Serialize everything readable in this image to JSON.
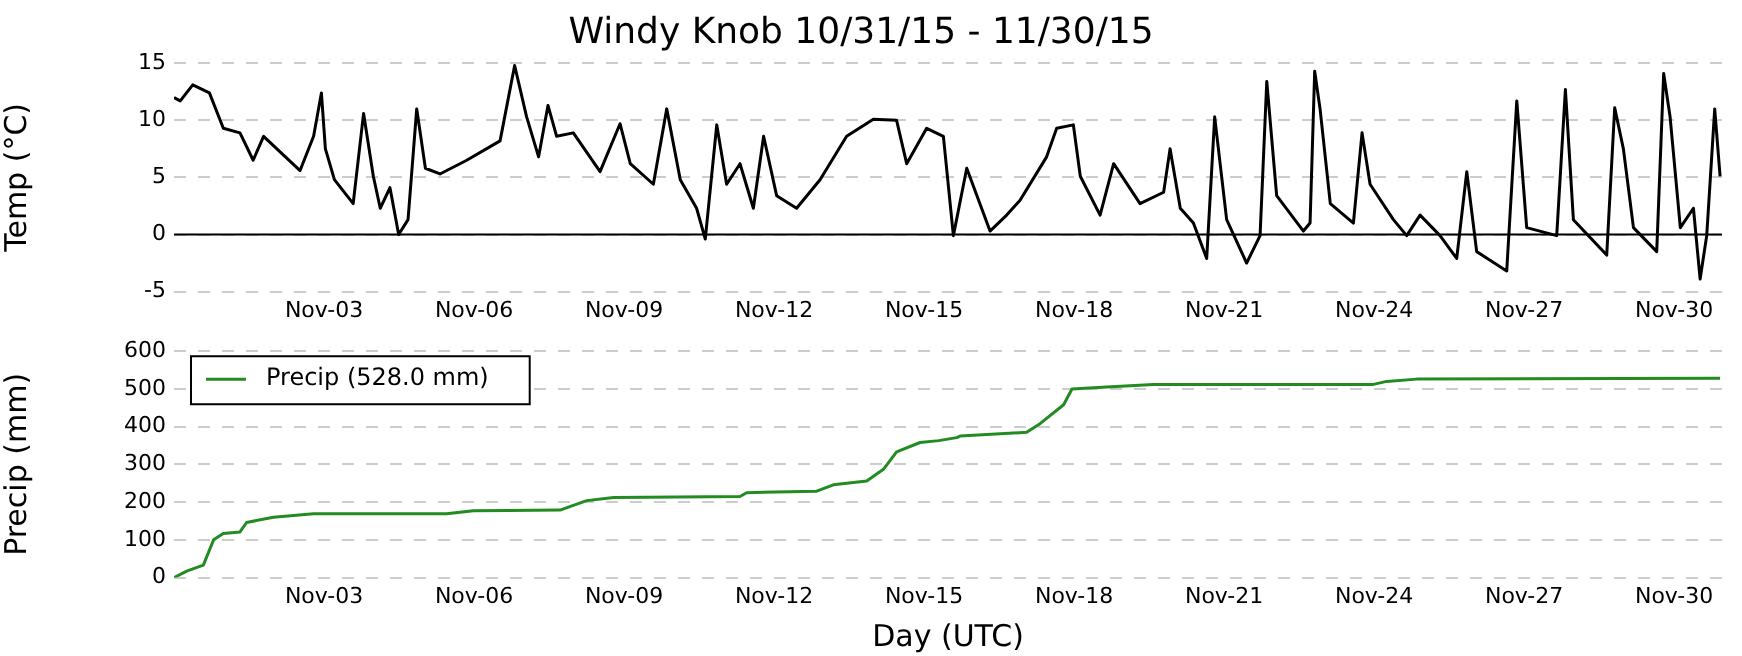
{
  "chart_data": [
    {
      "type": "line",
      "title": "Windy Knob 10/31/15 - 11/30/15",
      "ylabel": "Temp (°C)",
      "x": [
        "--10-31T00:00",
        "--10-31T03:00",
        "--10-31T09:00",
        "--10-31T17:00",
        "--10-31T23:40",
        "--11-01T07:40",
        "--11-01T14:00",
        "--11-01T19:00",
        "--11-02T12:30",
        "--11-02T19:00",
        "--11-02T22:45",
        "--11-03T00:40",
        "--11-03T05:00",
        "--11-03T14:00",
        "--11-03T19:00",
        "--11-03T23:40",
        "--11-04T03:00",
        "--11-04T07:40",
        "--11-04T11:50",
        "--11-04T16:20",
        "--11-04T20:30",
        "--11-05T00:40",
        "--11-05T07:40",
        "--11-05T20:30",
        "--11-06T12:30",
        "--11-06T19:30",
        "--11-07T01:15",
        "--11-07T07:00",
        "--11-07T11:30",
        "--11-07T15:40",
        "--11-07T23:40",
        "--11-08T12:30",
        "--11-08T22:05",
        "--11-09T03:00",
        "--11-09T14:05",
        "--11-09T20:30",
        "--11-10T03:00",
        "--11-10T10:50",
        "--11-10T15:00",
        "--11-10T20:30",
        "--11-11T01:15",
        "--11-11T07:40",
        "--11-11T14:05",
        "--11-11T19:00",
        "--11-12T01:15",
        "--11-12T10:50",
        "--11-12T22:05",
        "--11-13T10:50",
        "--11-13T23:40",
        "--11-14T10:50",
        "--11-14T15:40",
        "--11-15T01:15",
        "--11-15T09:17",
        "--11-15T14:05",
        "--11-15T20:30",
        "--11-16T07:40",
        "--11-16T15:40",
        "--11-16T22:05",
        "--11-17T10:50",
        "--11-17T15:40",
        "--11-17T23:40",
        "--11-18T03:00",
        "--11-18T12:30",
        "--11-18T19:00",
        "--11-19T07:40",
        "--11-19T19:00",
        "--11-19T22:05",
        "--11-20T03:00",
        "--11-20T09:17",
        "--11-20T15:40",
        "--11-20T19:30",
        "--11-21T01:15",
        "--11-21T10:50",
        "--11-21T17:17",
        "--11-21T20:30",
        "--11-22T01:15",
        "--11-22T14:05",
        "--11-22T17:17",
        "--11-22T19:30",
        "--11-22T22:05",
        "--11-23T03:00",
        "--11-23T14:05",
        "--11-23T18:14",
        "--11-23T22:05",
        "--11-24T09:17",
        "--11-24T15:40",
        "--11-24T22:05",
        "--11-25T07:40",
        "--11-25T15:40",
        "--11-25T20:30",
        "--11-26T01:15",
        "--11-26T15:40",
        "--11-26T20:30",
        "--11-27T01:15",
        "--11-27T15:40",
        "--11-27T19:50",
        "--11-27T23:40",
        "--11-28T15:40",
        "--11-28T19:30",
        "--11-28T23:40",
        "--11-29T04:30",
        "--11-29T15:40",
        "--11-29T19:00",
        "--11-29T22:05",
        "--11-30T03:00",
        "--11-30T09:17",
        "--11-30T12:30",
        "--11-30T15:40",
        "--11-30T19:30",
        "--11-30T22:05"
      ],
      "series": [
        {
          "color": "#000000",
          "values": [
            12.0,
            11.7,
            13.1,
            12.4,
            9.3,
            8.9,
            6.5,
            8.6,
            5.6,
            8.6,
            12.4,
            7.5,
            4.8,
            2.7,
            10.6,
            5.1,
            2.3,
            4.1,
            0,
            1.3,
            11.0,
            5.8,
            5.3,
            6.5,
            8.2,
            14.8,
            10.3,
            6.8,
            11.3,
            8.6,
            8.9,
            5.5,
            9.7,
            6.2,
            4.4,
            11.0,
            4.8,
            2.3,
            -0.4,
            9.6,
            4.4,
            6.2,
            2.3,
            8.6,
            3.4,
            2.3,
            4.8,
            8.6,
            10.1,
            10.0,
            6.2,
            9.3,
            8.6,
            -0.1,
            5.8,
            0.3,
            1.7,
            3.0,
            6.8,
            9.3,
            9.6,
            5.1,
            1.7,
            6.2,
            2.7,
            3.7,
            7.5,
            2.3,
            1.0,
            -2.1,
            10.3,
            1.3,
            -2.5,
            -0.1,
            13.4,
            3.4,
            0.3,
            1.0,
            14.3,
            11.0,
            2.7,
            1.0,
            8.9,
            4.4,
            1.3,
            -0.1,
            1.7,
            -0.1,
            -2.1,
            5.5,
            -1.5,
            -3.2,
            11.7,
            0.6,
            -0.1,
            12.7,
            1.3,
            -1.8,
            11.1,
            7.5,
            0.6,
            -1.5,
            14.1,
            10.3,
            0.6,
            2.3,
            -3.9,
            -0.1,
            11.0,
            5.1
          ]
        }
      ],
      "xlim": [
        "--10-31T00:00",
        "--11-30T23:00"
      ],
      "xticks": [
        {
          "value": "--11-03",
          "label": "Nov-03"
        },
        {
          "value": "--11-06",
          "label": "Nov-06"
        },
        {
          "value": "--11-09",
          "label": "Nov-09"
        },
        {
          "value": "--11-12",
          "label": "Nov-12"
        },
        {
          "value": "--11-15",
          "label": "Nov-15"
        },
        {
          "value": "--11-18",
          "label": "Nov-18"
        },
        {
          "value": "--11-21",
          "label": "Nov-21"
        },
        {
          "value": "--11-24",
          "label": "Nov-24"
        },
        {
          "value": "--11-27",
          "label": "Nov-27"
        },
        {
          "value": "--11-30",
          "label": "Nov-30"
        }
      ],
      "ylim": [
        -5,
        15
      ],
      "yticks": [
        -5,
        0,
        5,
        10,
        15
      ],
      "ref_lines": [
        {
          "axis": "y",
          "value": 0,
          "color": "#000000"
        }
      ],
      "grid": "y",
      "legend": false,
      "marker": "none",
      "line_style": "solid"
    },
    {
      "type": "line",
      "xlabel": "Day (UTC)",
      "ylabel": "Precip (mm)",
      "x": [
        "--10-31T00:00",
        "--10-31T06:05",
        "--10-31T14:05",
        "--10-31T19:00",
        "--10-31T23:40",
        "--11-01T07:40",
        "--11-01T10:50",
        "--11-01T23:40",
        "--11-02T19:00",
        "--11-05T10:50",
        "--11-05T23:40",
        "--11-07T17:17",
        "--11-08T06:05",
        "--11-08T19:00",
        "--11-11T07:40",
        "--11-11T10:50",
        "--11-12T20:30",
        "--11-13T04:30",
        "--11-13T20:30",
        "--11-14T04:30",
        "--11-14T10:50",
        "--11-14T22:05",
        "--11-15T07:02",
        "--11-15T15:40",
        "--11-15T17:17",
        "--11-17T01:15",
        "--11-17T07:40",
        "--11-17T19:00",
        "--11-17T23:00",
        "--11-18T15:40",
        "--11-19T14:05",
        "--11-23T23:40",
        "--11-24T06:05",
        "--11-24T20:30",
        "--11-30T22:05"
      ],
      "series": [
        {
          "name": "Precip (528.0 mm)",
          "color": "#228b22",
          "values": [
            0,
            17,
            33,
            100,
            117,
            121,
            146,
            160,
            169,
            169,
            177,
            179,
            204,
            212,
            215,
            225,
            229,
            246,
            256,
            287,
            333,
            358,
            363,
            371,
            375,
            385,
            408,
            458,
            500,
            505,
            512,
            512,
            520,
            526,
            528
          ]
        }
      ],
      "xlim": [
        "--10-31T00:00",
        "--11-30T23:00"
      ],
      "xticks": [
        {
          "value": "--11-03",
          "label": "Nov-03"
        },
        {
          "value": "--11-06",
          "label": "Nov-06"
        },
        {
          "value": "--11-09",
          "label": "Nov-09"
        },
        {
          "value": "--11-12",
          "label": "Nov-12"
        },
        {
          "value": "--11-15",
          "label": "Nov-15"
        },
        {
          "value": "--11-18",
          "label": "Nov-18"
        },
        {
          "value": "--11-21",
          "label": "Nov-21"
        },
        {
          "value": "--11-24",
          "label": "Nov-24"
        },
        {
          "value": "--11-27",
          "label": "Nov-27"
        },
        {
          "value": "--11-30",
          "label": "Nov-30"
        }
      ],
      "ylim": [
        0,
        600
      ],
      "yticks": [
        0,
        100,
        200,
        300,
        400,
        500,
        600
      ],
      "grid": "y",
      "legend": "top left",
      "marker": "none",
      "line_style": "solid"
    }
  ]
}
